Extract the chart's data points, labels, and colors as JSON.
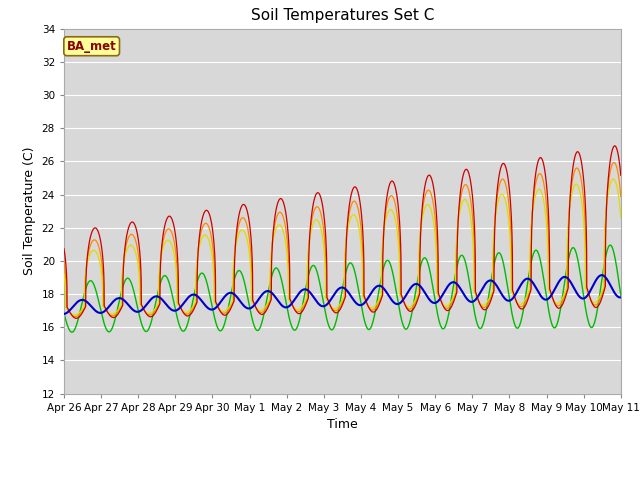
{
  "title": "Soil Temperatures Set C",
  "xlabel": "Time",
  "ylabel": "Soil Temperature (C)",
  "ylim": [
    12,
    34
  ],
  "yticks": [
    12,
    14,
    16,
    18,
    20,
    22,
    24,
    26,
    28,
    30,
    32,
    34
  ],
  "xtick_labels": [
    "Apr 26",
    "Apr 27",
    "Apr 28",
    "Apr 29",
    "Apr 30",
    "May 1",
    "May 2",
    "May 3",
    "May 4",
    "May 5",
    "May 6",
    "May 7",
    "May 8",
    "May 9",
    "May 10",
    "May 11"
  ],
  "colors": {
    "-2cm": "#cc0000",
    "-4cm": "#ff8800",
    "-8cm": "#dddd00",
    "-16cm": "#00bb00",
    "-32cm": "#0000cc"
  },
  "background_color": "#d8d8d8"
}
